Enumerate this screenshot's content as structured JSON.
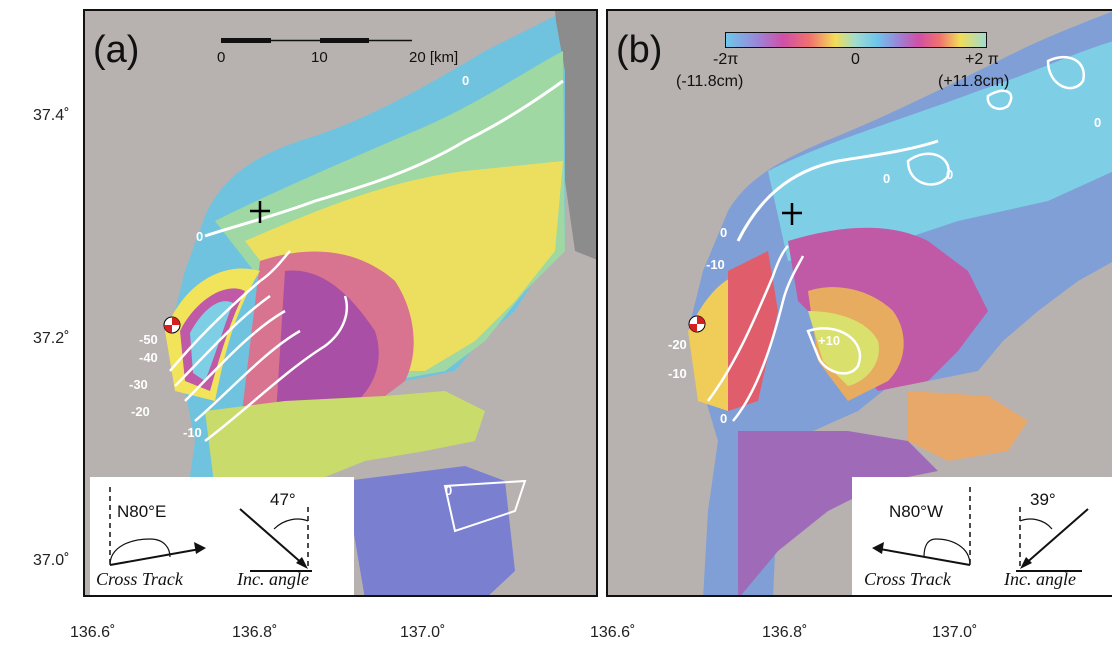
{
  "y_axis": {
    "ticks": [
      "37.4˚",
      "37.2˚",
      "37.0˚"
    ]
  },
  "x_axis": {
    "ticks": [
      "136.6˚",
      "136.8˚",
      "137.0˚"
    ]
  },
  "panel_a": {
    "letter": "(a)",
    "scale_bar": {
      "labels": [
        "0",
        "10",
        "20 [km]"
      ]
    },
    "contours": [
      "0",
      "0",
      "-50",
      "-40",
      "-30",
      "-20",
      "-10",
      "0"
    ],
    "inset": {
      "azimuth": "N80°E",
      "angle": "47°",
      "caption_left": "Cross Track",
      "caption_right": "Inc. angle"
    }
  },
  "panel_b": {
    "letter": "(b)",
    "colorbar": {
      "left": "-2π",
      "center": "0",
      "right": "+2 π",
      "left_sub": "(-11.8cm)",
      "right_sub": "(+11.8cm)"
    },
    "contours": [
      "0",
      "-10",
      "-20",
      "-10",
      "0",
      "+10",
      "0",
      "0",
      "0"
    ],
    "inset": {
      "azimuth": "N80°W",
      "angle": "39°",
      "caption_left": "Cross Track",
      "caption_right": "Inc. angle"
    }
  },
  "colors": {
    "background_gray": "#b7b2b0",
    "cyan": "#7ecfe6",
    "magenta": "#c05aa6",
    "yellow": "#f1e35a",
    "green": "#b5dc8c",
    "contour": "#ffffff"
  }
}
